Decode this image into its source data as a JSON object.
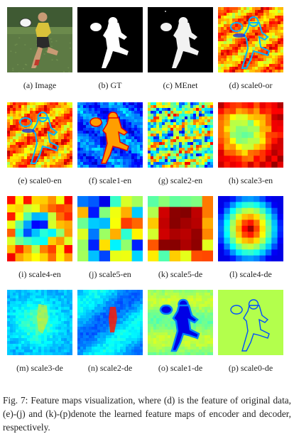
{
  "figure": {
    "panels": [
      {
        "id": "image",
        "caption": "(a) Image",
        "kind": "photo"
      },
      {
        "id": "gt",
        "caption": "(b) GT",
        "kind": "mask-gt"
      },
      {
        "id": "menet",
        "caption": "(c) MEnet",
        "kind": "mask-menet"
      },
      {
        "id": "scale0-or",
        "caption": "(d) scale0-or",
        "kind": "feature-fine-warm"
      },
      {
        "id": "scale0-en",
        "caption": "(e) scale0-en",
        "kind": "feature-fine-warm"
      },
      {
        "id": "scale1-en",
        "caption": "(f) scale1-en",
        "kind": "feature-fine-cool"
      },
      {
        "id": "scale2-en",
        "caption": "(g) scale2-en",
        "kind": "feature-noise"
      },
      {
        "id": "scale3-en",
        "caption": "(h) scale3-en",
        "kind": "feature-blocky-red"
      },
      {
        "id": "scale4-en",
        "caption": "(i) scale4-en",
        "kind": "feature-blocky-mixed"
      },
      {
        "id": "scale5-en",
        "caption": "(j) scale5-en",
        "kind": "feature-checker"
      },
      {
        "id": "scale5-de",
        "caption": "(k) scale5-de",
        "kind": "feature-dark-red"
      },
      {
        "id": "scale4-de",
        "caption": "(l) scale4-de",
        "kind": "feature-radial"
      },
      {
        "id": "scale3-de",
        "caption": "(m) scale3-de",
        "kind": "feature-soft-cyan"
      },
      {
        "id": "scale2-de",
        "caption": "(n) scale2-de",
        "kind": "feature-soft-blue"
      },
      {
        "id": "scale1-de",
        "caption": "(o) scale1-de",
        "kind": "feature-sharp-blue"
      },
      {
        "id": "scale0-de",
        "caption": "(p) scale0-de",
        "kind": "feature-edge-lime"
      }
    ],
    "caption": "Fig. 7: Feature maps visualization, where (d) is the feature of original data, (e)-(j) and (k)-(p)denote the learned feature maps of encoder and decoder, respectively."
  }
}
